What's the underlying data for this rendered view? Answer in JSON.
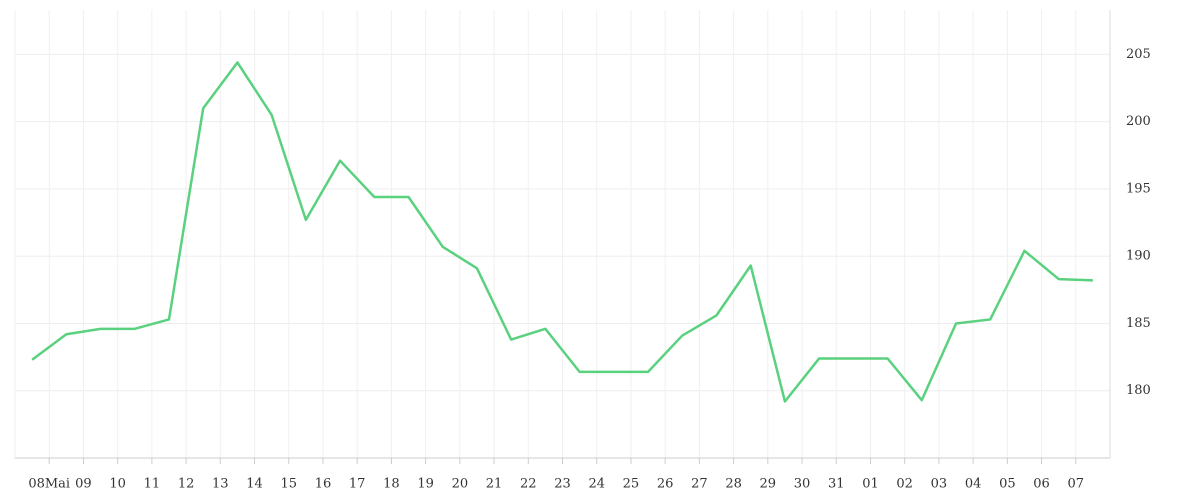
{
  "chart_data": {
    "type": "line",
    "categories": [
      null,
      null,
      null,
      null,
      null,
      null,
      null,
      null,
      null,
      null,
      null,
      null,
      null,
      null,
      null,
      null,
      null,
      null,
      null,
      null,
      null,
      null,
      null,
      null,
      null,
      null,
      null,
      null,
      null,
      null,
      null,
      null
    ],
    "xticks": [
      "08Mai",
      "09",
      "10",
      "11",
      "12",
      "13",
      "14",
      "15",
      "16",
      "17",
      "18",
      "19",
      "20",
      "21",
      "22",
      "23",
      "24",
      "25",
      "26",
      "27",
      "28",
      "29",
      "30",
      "31",
      "01",
      "02",
      "03",
      "04",
      "05",
      "06",
      "07"
    ],
    "series": [
      {
        "color": "#5ad17f",
        "values": [
          182.3,
          184.2,
          184.6,
          184.6,
          185.3,
          201.0,
          204.4,
          200.5,
          192.7,
          197.1,
          194.4,
          194.4,
          190.7,
          189.1,
          183.8,
          184.6,
          181.4,
          181.4,
          181.4,
          184.1,
          185.6,
          189.3,
          179.2,
          182.4,
          182.4,
          182.4,
          179.3,
          185.0,
          185.3,
          190.4,
          188.3,
          188.2
        ]
      }
    ],
    "ylim": [
      175,
      208.3
    ],
    "yticks": [
      180,
      185,
      190,
      195,
      200,
      205
    ],
    "grid": true
  }
}
